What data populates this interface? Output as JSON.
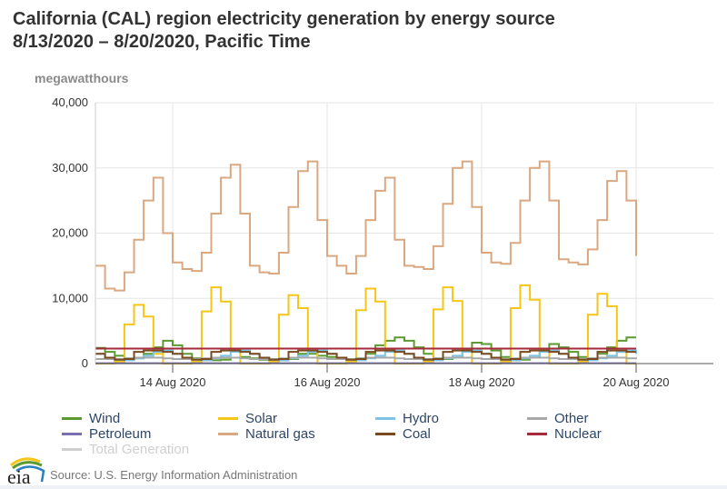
{
  "chart_data": {
    "type": "line",
    "title": "California (CAL) region electricity generation by energy source",
    "subtitle": "8/13/2020 – 8/20/2020, Pacific Time",
    "ylabel": "megawatthours",
    "ylim": [
      0,
      40000
    ],
    "yticks": [
      0,
      10000,
      20000,
      30000,
      40000
    ],
    "ytick_labels": [
      "0",
      "10,000",
      "20,000",
      "30,000",
      "40,000"
    ],
    "xlim": [
      "2020-08-13T00:00",
      "2020-08-21T00:00"
    ],
    "xticks": [
      "2020-08-14",
      "2020-08-16",
      "2020-08-18",
      "2020-08-20"
    ],
    "xtick_labels": [
      "14 Aug 2020",
      "16 Aug 2020",
      "18 Aug 2020",
      "20 Aug 2020"
    ],
    "x_start": "2020-08-13T00:00",
    "x_step_hours": 3,
    "step": true,
    "grid": true,
    "legend_position": "bottom",
    "series": [
      {
        "name": "Wind",
        "color": "#5b9a31",
        "visible": true,
        "values": [
          2400,
          1800,
          1200,
          800,
          800,
          1500,
          2500,
          3500,
          2800,
          1500,
          800,
          500,
          500,
          600,
          900,
          1000,
          800,
          600,
          500,
          500,
          700,
          1500,
          1500,
          1200,
          1000,
          800,
          600,
          800,
          1500,
          2800,
          3500,
          4000,
          3500,
          2500,
          1500,
          800,
          700,
          900,
          2000,
          3200,
          3000,
          2000,
          1000,
          500,
          600,
          900,
          2200,
          3000,
          2500,
          1800,
          1000,
          800,
          1500,
          2500,
          3500,
          4000,
          4000
        ]
      },
      {
        "name": "Solar",
        "color": "#f5c518",
        "visible": true,
        "values": [
          0,
          0,
          300,
          6000,
          9000,
          7200,
          1500,
          0,
          0,
          0,
          300,
          8000,
          11700,
          9500,
          2000,
          0,
          0,
          0,
          300,
          7500,
          10500,
          8500,
          1800,
          0,
          0,
          0,
          300,
          8200,
          11500,
          9500,
          2000,
          0,
          0,
          0,
          300,
          8300,
          11700,
          9600,
          2000,
          0,
          0,
          0,
          300,
          8500,
          12000,
          9800,
          2000,
          0,
          0,
          0,
          300,
          7500,
          10700,
          8800,
          1800,
          0,
          0
        ]
      },
      {
        "name": "Hydro",
        "color": "#7ec3e6",
        "visible": true,
        "values": [
          1500,
          900,
          600,
          500,
          800,
          1200,
          1800,
          2000,
          1500,
          900,
          600,
          500,
          800,
          1200,
          1800,
          2000,
          1500,
          900,
          600,
          500,
          800,
          1200,
          1800,
          2000,
          1500,
          900,
          600,
          500,
          800,
          1200,
          1800,
          2000,
          1500,
          900,
          600,
          500,
          800,
          1200,
          1800,
          2000,
          1500,
          900,
          600,
          500,
          800,
          1200,
          1800,
          2000,
          1500,
          900,
          600,
          500,
          800,
          1200,
          1800,
          2000,
          1500
        ]
      },
      {
        "name": "Other",
        "color": "#a8a8a8",
        "visible": true,
        "values": [
          700,
          700,
          700,
          800,
          900,
          900,
          900,
          800,
          700,
          700,
          700,
          800,
          900,
          900,
          900,
          800,
          700,
          700,
          700,
          800,
          900,
          900,
          900,
          800,
          700,
          700,
          700,
          800,
          900,
          900,
          900,
          800,
          700,
          700,
          700,
          800,
          900,
          900,
          900,
          800,
          700,
          700,
          700,
          800,
          900,
          900,
          900,
          800,
          700,
          700,
          700,
          800,
          900,
          900,
          900,
          800,
          700
        ]
      },
      {
        "name": "Petroleum",
        "color": "#7b6fb0",
        "visible": true,
        "values": [
          50,
          50,
          50,
          50,
          50,
          50,
          50,
          50,
          50,
          50,
          50,
          50,
          50,
          50,
          50,
          50,
          50,
          50,
          50,
          50,
          50,
          50,
          50,
          50,
          50,
          50,
          50,
          50,
          50,
          50,
          50,
          50,
          50,
          50,
          50,
          50,
          50,
          50,
          50,
          50,
          50,
          50,
          50,
          50,
          50,
          50,
          50,
          50,
          50,
          50,
          50,
          50,
          50,
          50,
          50,
          50,
          50
        ]
      },
      {
        "name": "Natural gas",
        "color": "#d9a880",
        "visible": true,
        "values": [
          15000,
          11500,
          11200,
          14000,
          19000,
          25000,
          28500,
          20000,
          15500,
          14500,
          14200,
          17000,
          23000,
          28500,
          30500,
          23000,
          15000,
          14000,
          13800,
          17000,
          24000,
          29500,
          31000,
          22000,
          16500,
          15000,
          13800,
          16500,
          22000,
          26500,
          28500,
          19000,
          15000,
          14800,
          14500,
          18000,
          24500,
          30000,
          31000,
          24000,
          17000,
          15500,
          15300,
          18500,
          25000,
          30000,
          31000,
          25000,
          16000,
          15500,
          15200,
          17500,
          22000,
          28000,
          29500,
          25000,
          16500
        ]
      },
      {
        "name": "Coal",
        "color": "#7a4a1e",
        "visible": true,
        "values": [
          1500,
          900,
          600,
          700,
          1800,
          2000,
          2000,
          1800,
          1500,
          900,
          600,
          700,
          1800,
          2000,
          2000,
          1800,
          1500,
          900,
          600,
          700,
          1800,
          2000,
          2000,
          1800,
          1500,
          900,
          600,
          700,
          1800,
          2000,
          2000,
          1800,
          1500,
          900,
          600,
          700,
          1800,
          2000,
          2000,
          1800,
          1500,
          900,
          600,
          700,
          1800,
          2000,
          2000,
          1800,
          1500,
          900,
          600,
          700,
          1800,
          2000,
          2000,
          1800,
          1800
        ]
      },
      {
        "name": "Nuclear",
        "color": "#a52a3a",
        "visible": true,
        "values": [
          2300,
          2300,
          2300,
          2300,
          2300,
          2300,
          2300,
          2300,
          2300,
          2300,
          2300,
          2300,
          2300,
          2300,
          2300,
          2300,
          2300,
          2300,
          2300,
          2300,
          2300,
          2300,
          2300,
          2300,
          2300,
          2300,
          2300,
          2300,
          2300,
          2300,
          2300,
          2300,
          2300,
          2300,
          2300,
          2300,
          2300,
          2300,
          2300,
          2300,
          2300,
          2300,
          2300,
          2300,
          2300,
          2300,
          2300,
          2300,
          2300,
          2300,
          2300,
          2300,
          2300,
          2300,
          2300,
          2300,
          2300
        ]
      },
      {
        "name": "Total Generation",
        "color": "#cfcfcf",
        "visible": false,
        "values": []
      }
    ]
  },
  "source": "Source: U.S. Energy Information Administration",
  "logo_text": "eia"
}
